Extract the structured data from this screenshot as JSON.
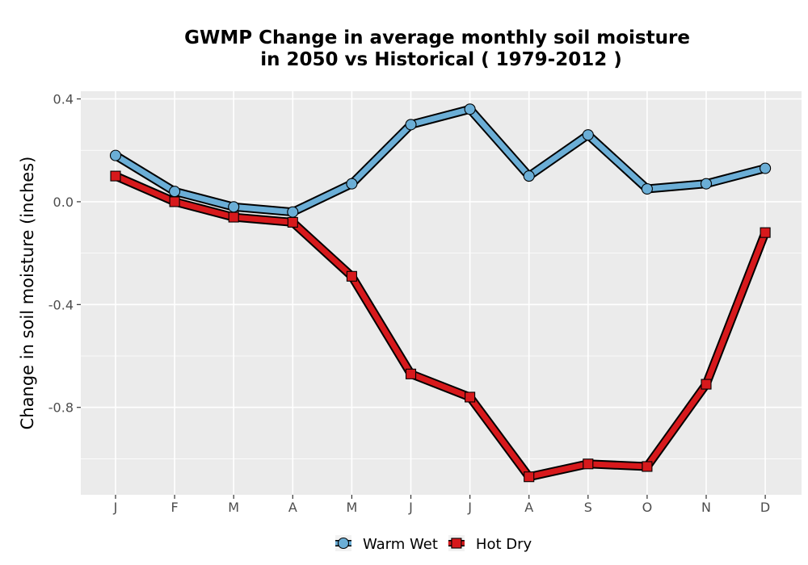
{
  "chart_data": {
    "type": "line",
    "title": "GWMP  Change in average monthly soil moisture",
    "subtitle": "in 2050 vs Historical ( 1979-2012 )",
    "xlabel": "",
    "ylabel": "Change in soil moisture (inches)",
    "categories": [
      "J",
      "F",
      "M",
      "A",
      "M",
      "J",
      "J",
      "A",
      "S",
      "O",
      "N",
      "D"
    ],
    "ylim": [
      -1.14,
      0.43
    ],
    "yticks": [
      0.4,
      0.0,
      -0.4,
      -0.8
    ],
    "ytick_labels": [
      "0.4",
      "0.0",
      "-0.4",
      "-0.8"
    ],
    "grid": true,
    "legend_position": "bottom",
    "series": [
      {
        "name": "Warm Wet",
        "marker": "circle",
        "color": "#6baed6",
        "values": [
          0.18,
          0.04,
          -0.02,
          -0.04,
          0.07,
          0.3,
          0.36,
          0.1,
          0.26,
          0.05,
          0.07,
          0.13
        ]
      },
      {
        "name": "Hot Dry",
        "marker": "square",
        "color": "#d7191c",
        "values": [
          0.1,
          0.0,
          -0.06,
          -0.08,
          -0.29,
          -0.67,
          -0.76,
          -1.07,
          -1.02,
          -1.03,
          -0.71,
          -0.12
        ]
      }
    ]
  }
}
